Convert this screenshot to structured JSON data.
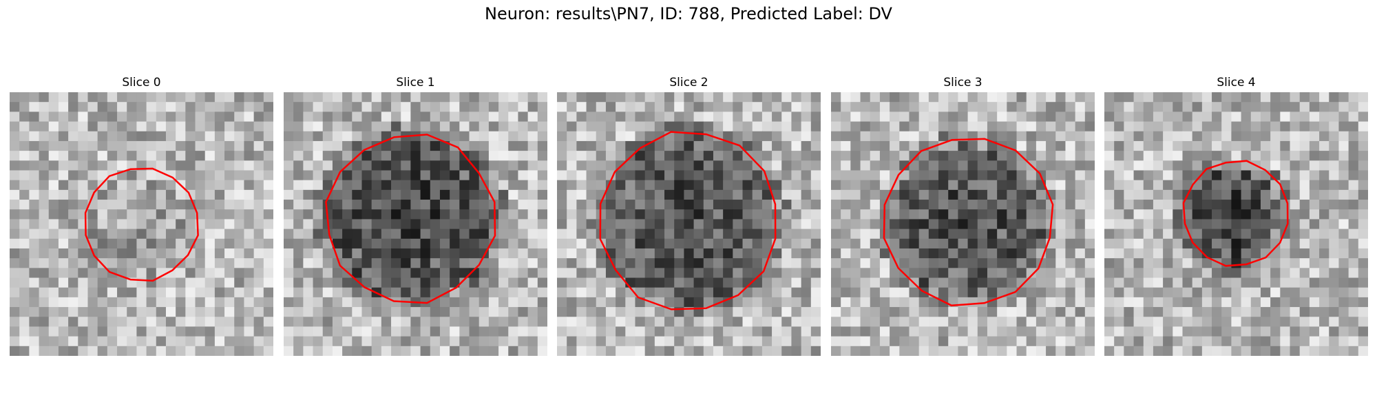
{
  "figure": {
    "title": "Neuron: results\\PN7, ID: 788, Predicted Label: DV"
  },
  "colors": {
    "contour": "#ff0000",
    "background": "#ffffff"
  },
  "panels": [
    {
      "label": "Slice 0",
      "spot_center": [
        0.49,
        0.53
      ],
      "spot_radius": 0.2,
      "spot_depth": 0.08,
      "contour_radius": 0.215,
      "contour_center": [
        0.5,
        0.5
      ],
      "seed": 11
    },
    {
      "label": "Slice 1",
      "spot_center": [
        0.48,
        0.48
      ],
      "spot_radius": 0.32,
      "spot_depth": 0.45,
      "contour_radius": 0.32,
      "contour_center": [
        0.48,
        0.48
      ],
      "seed": 23
    },
    {
      "label": "Slice 2",
      "spot_center": [
        0.5,
        0.48
      ],
      "spot_radius": 0.33,
      "spot_depth": 0.42,
      "contour_radius": 0.34,
      "contour_center": [
        0.5,
        0.49
      ],
      "seed": 37
    },
    {
      "label": "Slice 3",
      "spot_center": [
        0.52,
        0.49
      ],
      "spot_radius": 0.29,
      "spot_depth": 0.42,
      "contour_radius": 0.32,
      "contour_center": [
        0.52,
        0.49
      ],
      "seed": 41
    },
    {
      "label": "Slice 4",
      "spot_center": [
        0.48,
        0.47
      ],
      "spot_radius": 0.18,
      "spot_depth": 0.5,
      "contour_radius": 0.2,
      "contour_center": [
        0.5,
        0.46
      ],
      "seed": 53
    }
  ]
}
